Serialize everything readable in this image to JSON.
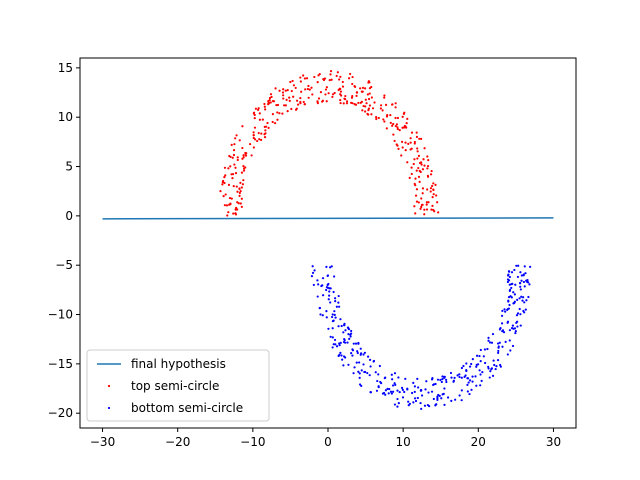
{
  "chart_data": {
    "type": "scatter",
    "title": "",
    "xlabel": "",
    "ylabel": "",
    "xlim": [
      -33,
      33
    ],
    "ylim": [
      -21.5,
      16.0
    ],
    "xticks": [
      -30,
      -20,
      -10,
      0,
      10,
      20,
      30
    ],
    "yticks": [
      15,
      10,
      5,
      0,
      -5,
      -10,
      -15,
      -20
    ],
    "grid": false,
    "legend_position": "lower-left",
    "line": {
      "name": "final hypothesis",
      "color": "#1f77b4",
      "x": [
        -30,
        30
      ],
      "y": [
        -0.3,
        -0.2
      ]
    },
    "series": [
      {
        "name": "top semi-circle",
        "color": "#ff0000",
        "shape": "semicircle",
        "center": [
          0,
          0
        ],
        "r_inner": 11.5,
        "r_outer": 14.7,
        "theta_deg": [
          0,
          180
        ],
        "count": 400,
        "seed": 7
      },
      {
        "name": "bottom semi-circle",
        "color": "#0000ff",
        "shape": "semicircle",
        "center": [
          12.5,
          -5
        ],
        "r_inner": 11.5,
        "r_outer": 14.7,
        "theta_deg": [
          180,
          360
        ],
        "count": 400,
        "seed": 13
      }
    ]
  }
}
